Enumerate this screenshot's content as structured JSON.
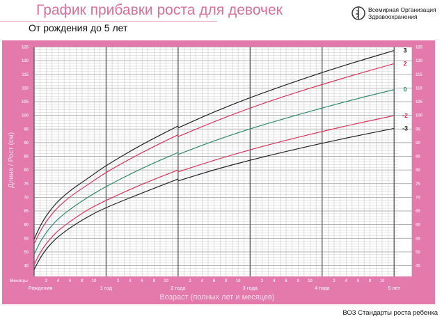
{
  "header": {
    "title": "График прибавки роста для девочек",
    "subtitle": "От рождения до 5 лет",
    "org_line1": "Всемирная Организация",
    "org_line2": "Здравоохранения"
  },
  "footer": "ВОЗ Стандарты роста ребенка",
  "chart_data": {
    "type": "line",
    "title": "График прибавки роста для девочек",
    "subtitle": "От рождения до 5 лет",
    "xlabel": "Возраст (полных лет и месяцев)",
    "ylabel": "Длина / Рост (см)",
    "x_unit_label": "Месяцы",
    "xlim": [
      0,
      60
    ],
    "ylim": [
      45,
      125
    ],
    "y_ticks": [
      45,
      50,
      55,
      60,
      65,
      70,
      75,
      80,
      85,
      90,
      95,
      100,
      105,
      110,
      115,
      120,
      125
    ],
    "month_ticks": [
      "2",
      "4",
      "6",
      "8",
      "10"
    ],
    "year_labels": [
      "Рождения",
      "1 год",
      "2 года",
      "3 года",
      "4 года",
      "5 лет"
    ],
    "grid": true,
    "colors": {
      "panel": "#e47aab",
      "black": "#222222",
      "red": "#d8365e",
      "green": "#2e8b6a"
    },
    "x": [
      0,
      1,
      2,
      3,
      4,
      6,
      9,
      12,
      18,
      24,
      24,
      30,
      36,
      42,
      48,
      54,
      60
    ],
    "series": [
      {
        "name": "3",
        "color": "#222222",
        "values": [
          54.7,
          59.5,
          63.2,
          66.1,
          68.6,
          72.5,
          77.0,
          81.7,
          89.4,
          96.1,
          95.4,
          101.3,
          106.5,
          111.2,
          115.7,
          119.8,
          123.7
        ]
      },
      {
        "name": "2",
        "color": "#d8365e",
        "values": [
          52.9,
          57.6,
          61.1,
          64.0,
          66.4,
          70.3,
          74.7,
          79.2,
          86.5,
          92.9,
          92.2,
          97.7,
          102.7,
          107.2,
          111.3,
          115.2,
          118.9
        ]
      },
      {
        "name": "0",
        "color": "#2e8b6a",
        "values": [
          49.1,
          53.7,
          57.1,
          59.8,
          62.1,
          65.7,
          70.1,
          74.0,
          80.7,
          86.4,
          85.7,
          90.7,
          95.1,
          99.0,
          102.7,
          106.2,
          109.4
        ]
      },
      {
        "name": "-2",
        "color": "#d8365e",
        "values": [
          45.4,
          49.8,
          53.0,
          55.6,
          57.8,
          61.2,
          65.6,
          68.9,
          74.9,
          80.0,
          79.3,
          83.6,
          87.4,
          90.9,
          94.1,
          97.1,
          99.9
        ]
      },
      {
        "name": "-3",
        "color": "#222222",
        "values": [
          43.6,
          47.8,
          51.0,
          53.5,
          55.6,
          58.9,
          63.0,
          66.3,
          71.6,
          76.7,
          76.0,
          80.1,
          83.6,
          86.8,
          89.8,
          92.6,
          95.2
        ]
      }
    ]
  }
}
